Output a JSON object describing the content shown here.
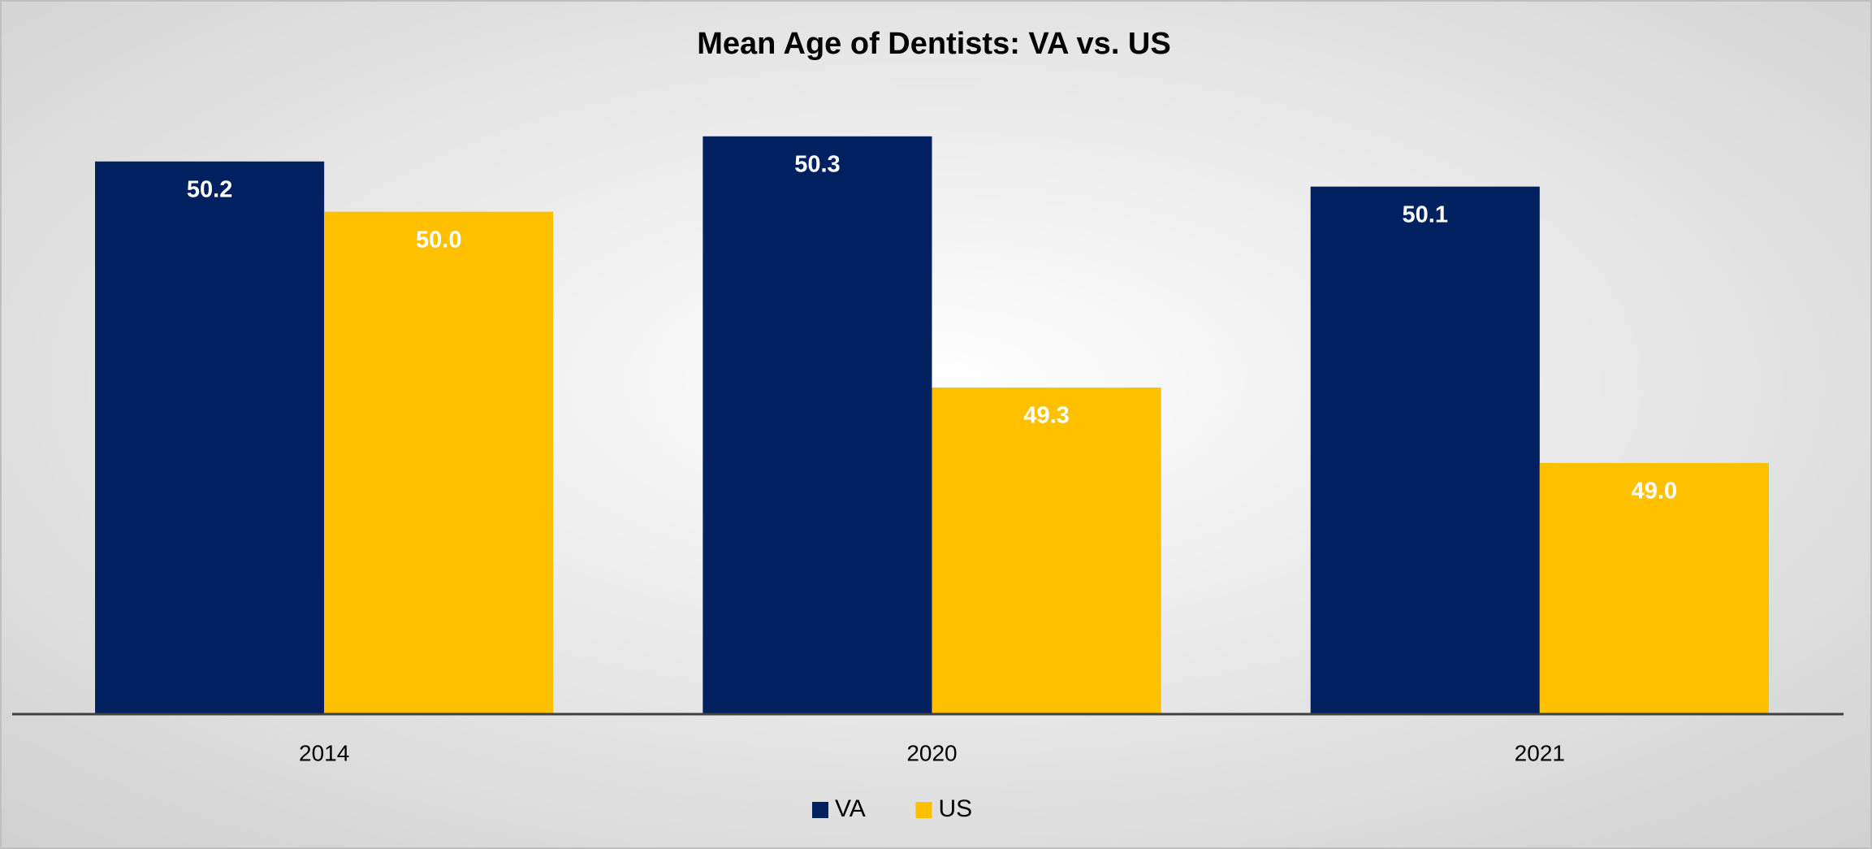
{
  "chart_data": {
    "type": "bar",
    "title": "Mean Age of Dentists: VA vs. US",
    "categories": [
      "2014",
      "2020",
      "2021"
    ],
    "series": [
      {
        "name": "VA",
        "color": "#002060",
        "values": [
          50.2,
          50.3,
          50.1
        ],
        "value_labels": [
          "50.2",
          "50.3",
          "50.1"
        ]
      },
      {
        "name": "US",
        "color": "#ffc000",
        "values": [
          50.0,
          49.3,
          49.0
        ],
        "value_labels": [
          "50.0",
          "49.3",
          "49.0"
        ]
      }
    ],
    "ylim": [
      48,
      50.5
    ],
    "legend": "bottom"
  }
}
